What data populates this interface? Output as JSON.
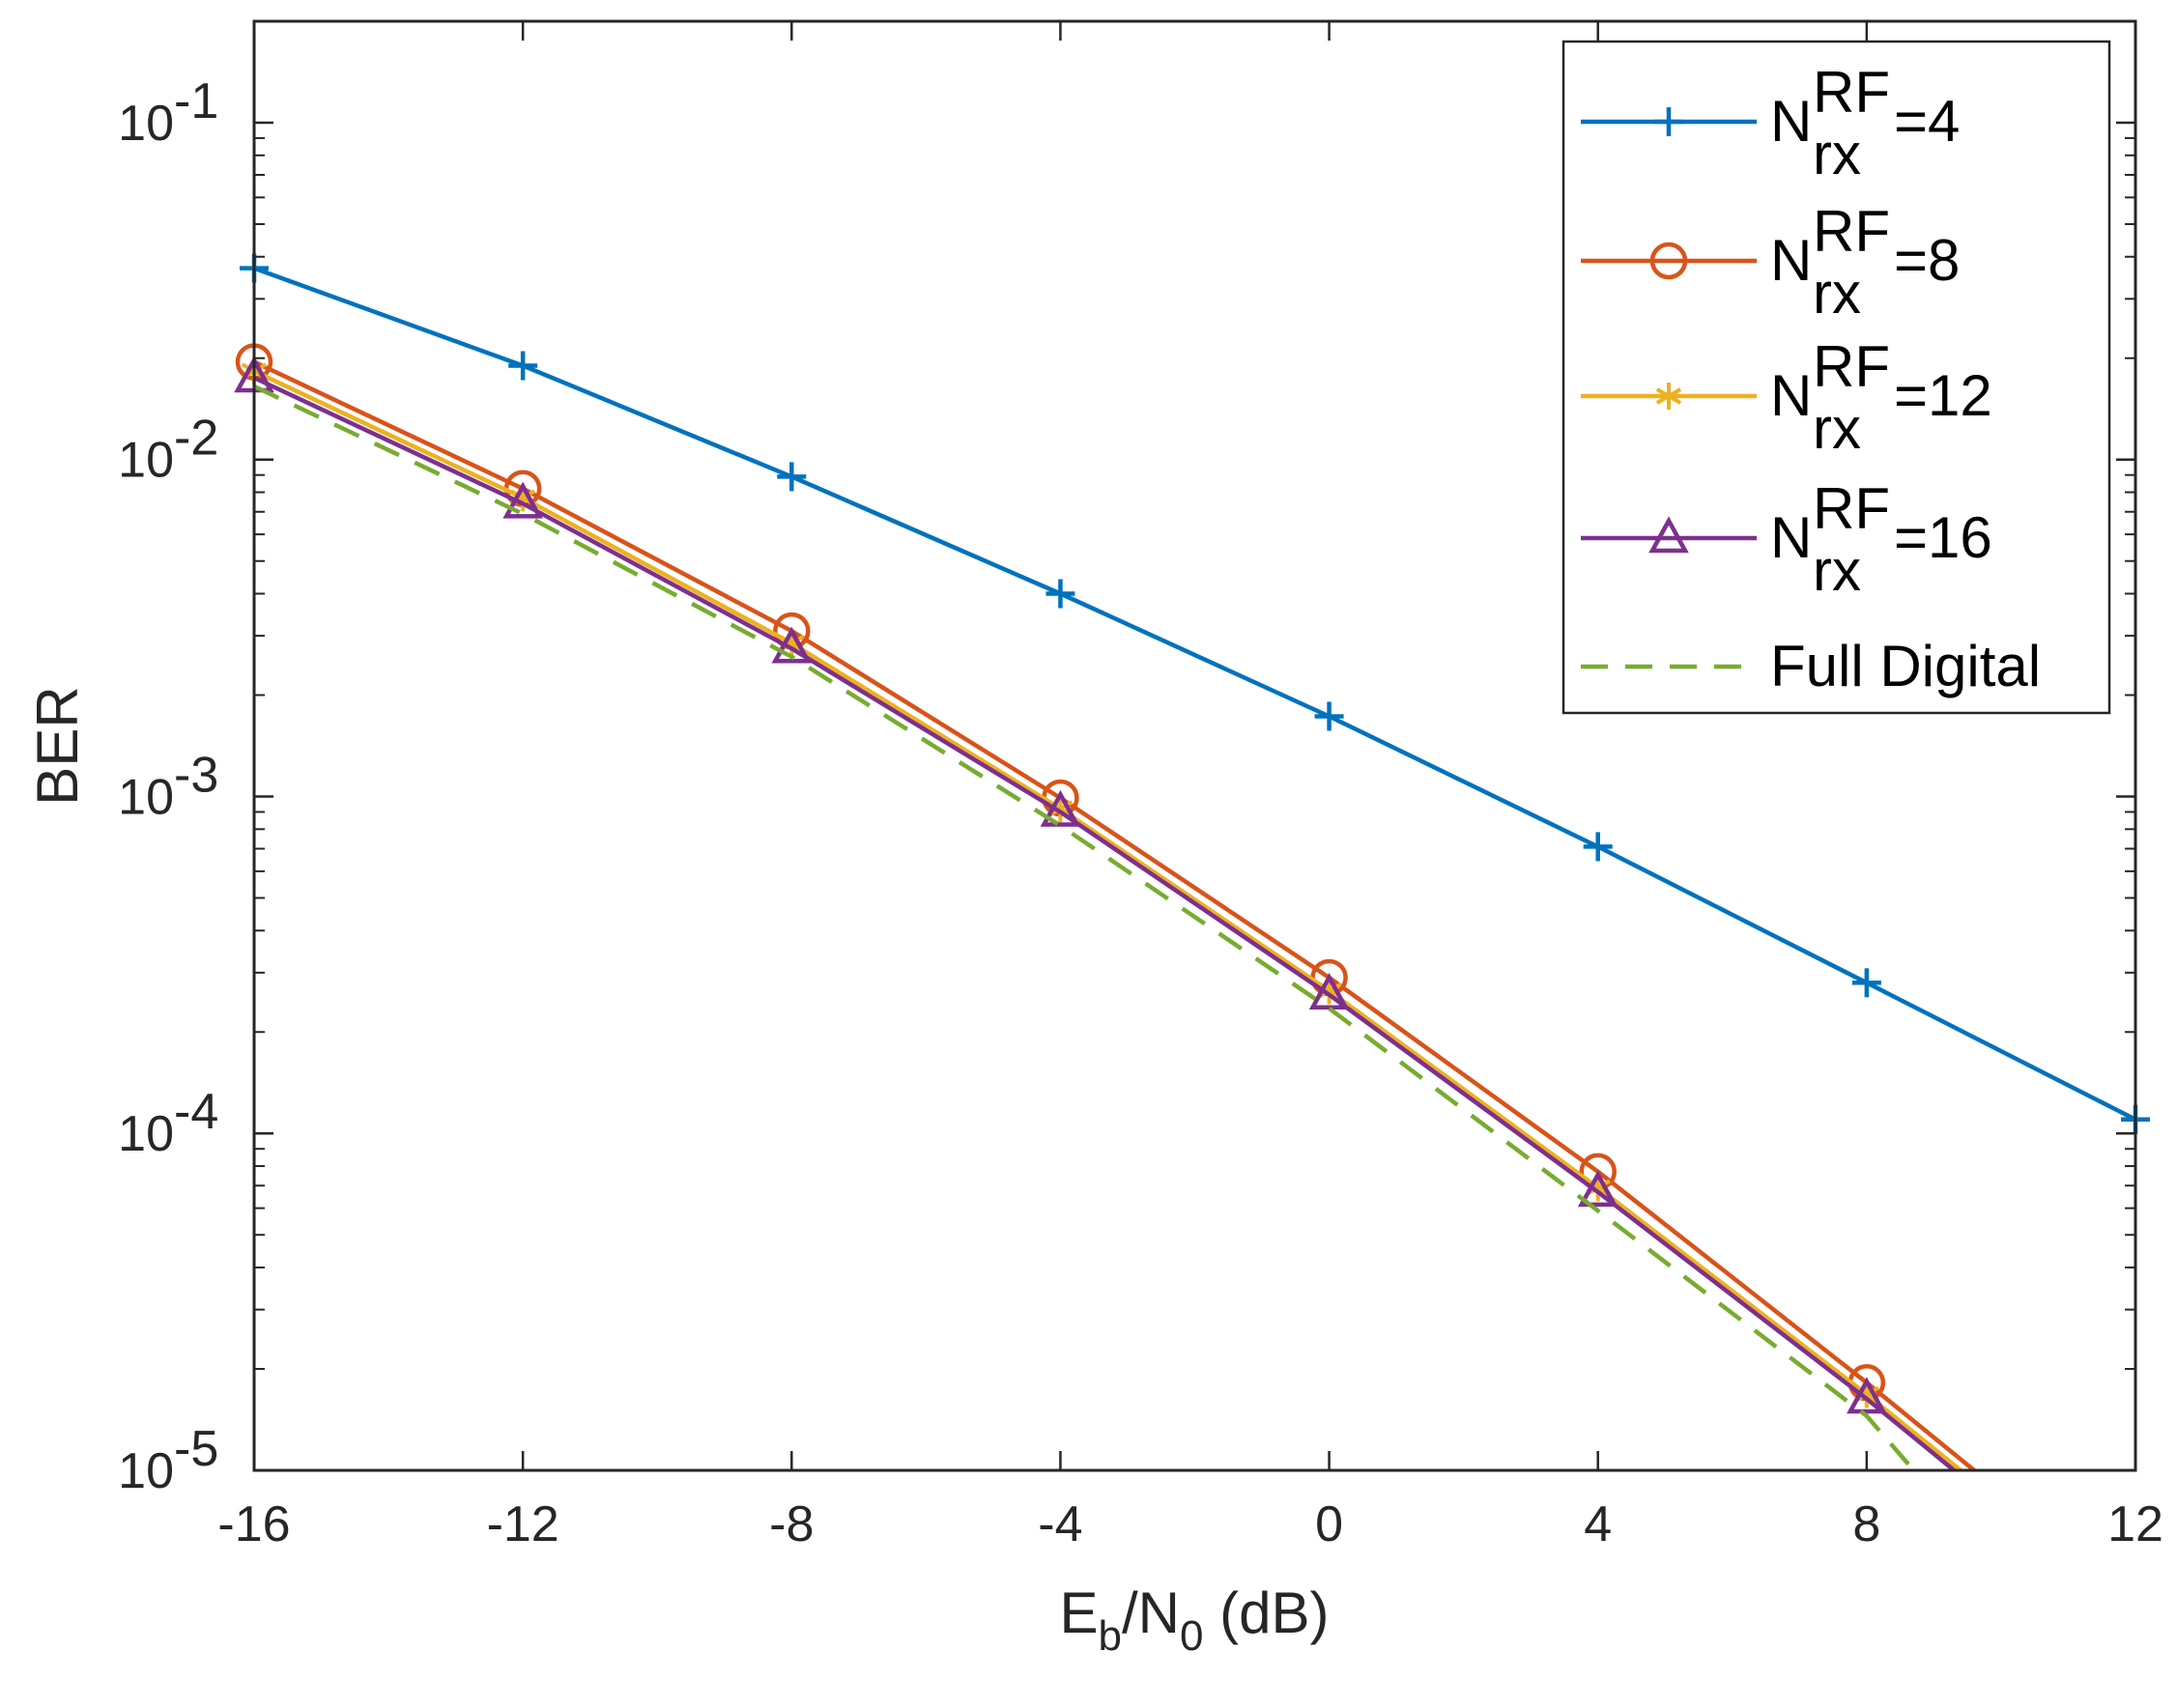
{
  "chart_data": {
    "type": "line",
    "title": "",
    "xlabel": {
      "base": "E",
      "sub1": "b",
      "mid": "/N",
      "sub2": "0",
      "tail": " (dB)"
    },
    "ylabel": "BER",
    "yscale": "log",
    "xlim": [
      -16,
      12
    ],
    "ylim": [
      1e-05,
      0.2
    ],
    "grid": false,
    "legend_position": "top-right",
    "x_ticks": [
      -16,
      -12,
      -8,
      -4,
      0,
      4,
      8,
      12
    ],
    "x_tick_labels": [
      "-16",
      "-12",
      "-8",
      "-4",
      "0",
      "4",
      "8",
      "12"
    ],
    "y_ticks": [
      {
        "value": 0.1,
        "base": "10",
        "exp": "-1"
      },
      {
        "value": 0.01,
        "base": "10",
        "exp": "-2"
      },
      {
        "value": 0.001,
        "base": "10",
        "exp": "-3"
      },
      {
        "value": 0.0001,
        "base": "10",
        "exp": "-4"
      },
      {
        "value": 1e-05,
        "base": "10",
        "exp": "-5"
      }
    ],
    "series": [
      {
        "key": "rf4",
        "name": "N_rx^RF=4",
        "label_main": "N",
        "label_sup": "RF",
        "label_sub": "rx",
        "label_value": "=4",
        "color": "#0072BD",
        "marker": "plus",
        "dash": false,
        "x": [
          -16,
          -12,
          -8,
          -4,
          0,
          4,
          8,
          12
        ],
        "values": [
          0.037,
          0.019,
          0.0089,
          0.004,
          0.00173,
          0.00071,
          0.00028,
          0.00011
        ]
      },
      {
        "key": "rf8",
        "name": "N_rx^RF=8",
        "label_main": "N",
        "label_sup": "RF",
        "label_sub": "rx",
        "label_value": "=8",
        "color": "#D95319",
        "marker": "circle",
        "dash": false,
        "x": [
          -16,
          -12,
          -8,
          -4,
          0,
          4,
          8,
          9.6
        ],
        "values": [
          0.0195,
          0.0082,
          0.0031,
          0.00099,
          0.00029,
          7.7e-05,
          1.82e-05,
          1e-05
        ]
      },
      {
        "key": "rf12",
        "name": "N_rx^RF=12",
        "label_main": "N",
        "label_sup": "RF",
        "label_sub": "rx",
        "label_value": "=12",
        "color": "#EDB120",
        "marker": "asterisk",
        "dash": false,
        "x": [
          -16,
          -12,
          -8,
          -4,
          0,
          4,
          8,
          9.4
        ],
        "values": [
          0.0183,
          0.0077,
          0.00285,
          0.00092,
          0.000265,
          6.9e-05,
          1.68e-05,
          1e-05
        ]
      },
      {
        "key": "rf16",
        "name": "N_rx^RF=16",
        "label_main": "N",
        "label_sup": "RF",
        "label_sub": "rx",
        "label_value": "=16",
        "color": "#7E2F8E",
        "marker": "triangle",
        "dash": false,
        "x": [
          -16,
          -12,
          -8,
          -4,
          0,
          4,
          8,
          9.3
        ],
        "values": [
          0.0175,
          0.0074,
          0.00275,
          0.0009,
          0.000258,
          6.7e-05,
          1.63e-05,
          1e-05
        ]
      },
      {
        "key": "full",
        "name": "Full Digital",
        "label_main": "Full Digital",
        "label_sup": "",
        "label_sub": "",
        "label_value": "",
        "color": "#77AC30",
        "marker": "none",
        "dash": true,
        "x": [
          -16,
          -12,
          -8,
          -4,
          0,
          4,
          8,
          8.7
        ],
        "values": [
          0.0165,
          0.0069,
          0.0026,
          0.00082,
          0.000235,
          5.9e-05,
          1.45e-05,
          1e-05
        ]
      }
    ]
  }
}
